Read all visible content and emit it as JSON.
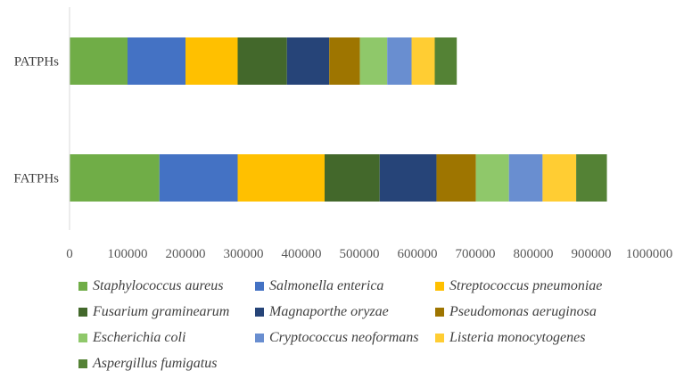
{
  "chart_data": {
    "type": "bar",
    "orientation": "horizontal",
    "stacked": true,
    "categories": [
      "PATPHs",
      "FATPHs"
    ],
    "series": [
      {
        "name": "Staphylococcus aureus",
        "color": "#70AD47",
        "values": [
          100000,
          155000
        ]
      },
      {
        "name": "Salmonella enterica",
        "color": "#4472C4",
        "values": [
          100000,
          135000
        ]
      },
      {
        "name": "Streptococcus pneumoniae",
        "color": "#FFC000",
        "values": [
          90000,
          150000
        ]
      },
      {
        "name": "Fusarium graminearum",
        "color": "#43682B",
        "values": [
          85000,
          95000
        ]
      },
      {
        "name": "Magnaporthe oryzae",
        "color": "#264478",
        "values": [
          73000,
          98000
        ]
      },
      {
        "name": "Pseudomonas aeruginosa",
        "color": "#9E7500",
        "values": [
          53000,
          68000
        ]
      },
      {
        "name": "Escherichia coli",
        "color": "#8FC86A",
        "values": [
          47000,
          57000
        ]
      },
      {
        "name": "Cryptococcus neoformans",
        "color": "#698ED0",
        "values": [
          42000,
          58000
        ]
      },
      {
        "name": "Listeria monocytogenes",
        "color": "#FFCD33",
        "values": [
          40000,
          58000
        ]
      },
      {
        "name": "Aspergillus fumigatus",
        "color": "#548235",
        "values": [
          38000,
          53000
        ]
      }
    ],
    "x_ticks": [
      "0",
      "100000",
      "200000",
      "300000",
      "400000",
      "500000",
      "600000",
      "700000",
      "800000",
      "900000",
      "1000000"
    ],
    "xlim": [
      0,
      1000000
    ],
    "title": "",
    "xlabel": "",
    "ylabel": "",
    "legend_position": "bottom",
    "grid": false
  }
}
